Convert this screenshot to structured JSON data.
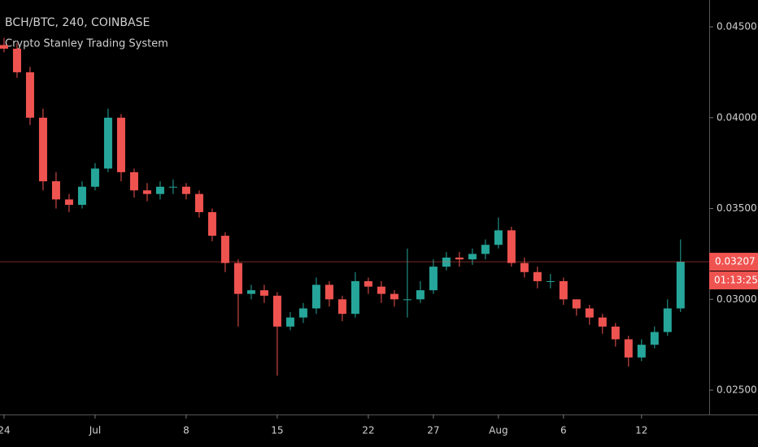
{
  "chart_data": {
    "type": "candlestick",
    "title": "BCH/BTC, 240, COINBASE",
    "subtitle": "Crypto Stanley Trading System",
    "x": [
      0,
      1,
      2,
      3,
      4,
      5,
      6,
      7,
      8,
      9,
      10,
      11,
      12,
      13,
      14,
      15,
      16,
      17,
      18,
      19,
      20,
      21,
      22,
      23,
      24,
      25,
      26,
      27,
      28,
      29,
      30,
      31,
      32,
      33,
      34,
      35,
      36,
      37,
      38,
      39,
      40,
      41,
      42,
      43,
      44,
      45,
      46,
      47,
      48,
      49,
      50,
      51,
      52
    ],
    "open": [
      0.044,
      0.0438,
      0.0425,
      0.04,
      0.0365,
      0.0355,
      0.0352,
      0.0362,
      0.0372,
      0.04,
      0.037,
      0.036,
      0.0358,
      0.0362,
      0.0362,
      0.0358,
      0.0348,
      0.0335,
      0.032,
      0.0303,
      0.0305,
      0.0302,
      0.0285,
      0.029,
      0.0295,
      0.0308,
      0.03,
      0.0292,
      0.031,
      0.0307,
      0.0303,
      0.03,
      0.03,
      0.0305,
      0.0318,
      0.0323,
      0.0322,
      0.0325,
      0.033,
      0.0338,
      0.032,
      0.0315,
      0.031,
      0.031,
      0.03,
      0.0295,
      0.029,
      0.0285,
      0.0278,
      0.0268,
      0.0275,
      0.0282,
      0.0295
    ],
    "high": [
      0.0444,
      0.0441,
      0.0428,
      0.0405,
      0.037,
      0.0358,
      0.0365,
      0.0375,
      0.0405,
      0.0402,
      0.0372,
      0.0364,
      0.0365,
      0.0366,
      0.0364,
      0.036,
      0.035,
      0.0337,
      0.0322,
      0.0308,
      0.0308,
      0.0304,
      0.0293,
      0.0298,
      0.0312,
      0.031,
      0.0302,
      0.0315,
      0.0312,
      0.031,
      0.0305,
      0.0328,
      0.031,
      0.0322,
      0.0326,
      0.0326,
      0.0328,
      0.0333,
      0.0345,
      0.034,
      0.0323,
      0.0318,
      0.0314,
      0.0312,
      0.03,
      0.0297,
      0.0292,
      0.0287,
      0.028,
      0.0278,
      0.0285,
      0.03,
      0.0333
    ],
    "low": [
      0.0436,
      0.0422,
      0.0396,
      0.036,
      0.035,
      0.0348,
      0.035,
      0.036,
      0.037,
      0.0365,
      0.0356,
      0.0354,
      0.0355,
      0.0358,
      0.0355,
      0.0345,
      0.0332,
      0.0315,
      0.0285,
      0.03,
      0.0298,
      0.0258,
      0.0283,
      0.0287,
      0.0292,
      0.0296,
      0.0288,
      0.029,
      0.0303,
      0.0298,
      0.0296,
      0.029,
      0.0298,
      0.0303,
      0.0316,
      0.0318,
      0.0319,
      0.0322,
      0.0328,
      0.0318,
      0.0312,
      0.0306,
      0.0306,
      0.0297,
      0.0291,
      0.0286,
      0.0281,
      0.0274,
      0.0263,
      0.0266,
      0.0273,
      0.028,
      0.0293
    ],
    "close": [
      0.0438,
      0.0425,
      0.04,
      0.0365,
      0.0355,
      0.0352,
      0.0362,
      0.0372,
      0.04,
      0.037,
      0.036,
      0.0358,
      0.0362,
      0.0362,
      0.0358,
      0.0348,
      0.0335,
      0.032,
      0.0303,
      0.0305,
      0.0302,
      0.0285,
      0.029,
      0.0295,
      0.0308,
      0.03,
      0.0292,
      0.031,
      0.0307,
      0.0303,
      0.03,
      0.03,
      0.0305,
      0.0318,
      0.0323,
      0.0322,
      0.0325,
      0.033,
      0.0338,
      0.032,
      0.0315,
      0.031,
      0.031,
      0.03,
      0.0295,
      0.029,
      0.0285,
      0.0278,
      0.0268,
      0.0275,
      0.0282,
      0.0295,
      0.03207
    ],
    "up_color": "#26a69a",
    "down_color": "#ef5350",
    "last_price": 0.03207,
    "countdown": "01:13:25",
    "xlim": [
      -0.31,
      54.2
    ],
    "xticks": [
      {
        "value": 0,
        "label": "24"
      },
      {
        "value": 7,
        "label": "Jul"
      },
      {
        "value": 14,
        "label": "8"
      },
      {
        "value": 21,
        "label": "15"
      },
      {
        "value": 28,
        "label": "22"
      },
      {
        "value": 33,
        "label": "27"
      },
      {
        "value": 38,
        "label": "Aug"
      },
      {
        "value": 43,
        "label": "6"
      },
      {
        "value": 49,
        "label": "12"
      }
    ],
    "ylim": [
      0.02366,
      0.04648
    ],
    "yticks": [
      {
        "value": 0.025,
        "label": "0.02500"
      },
      {
        "value": 0.03,
        "label": "0.03000"
      },
      {
        "value": 0.035,
        "label": "0.03500"
      },
      {
        "value": 0.04,
        "label": "0.04000"
      },
      {
        "value": 0.045,
        "label": "0.04500"
      }
    ]
  }
}
